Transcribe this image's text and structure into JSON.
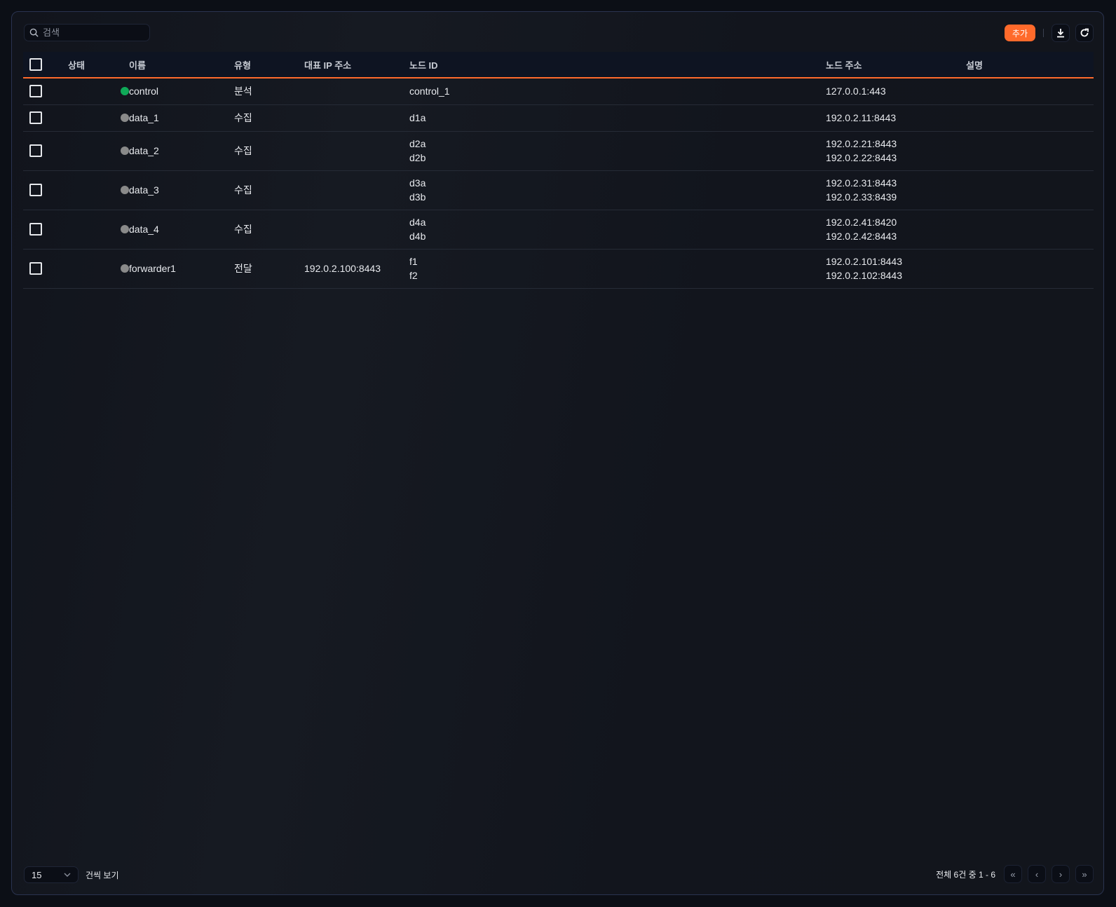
{
  "search": {
    "placeholder": "검색",
    "icon": "search-icon"
  },
  "toolbar": {
    "add_label": "추가",
    "download_icon": "download-icon",
    "refresh_icon": "refresh-icon",
    "accent": "#ff6a2b"
  },
  "table": {
    "headers": {
      "status": "상태",
      "name": "이름",
      "type": "유형",
      "rep_ip": "대표 IP 주소",
      "node_id": "노드 ID",
      "node_addr": "노드 주소",
      "desc": "설명"
    },
    "rows": [
      {
        "status": "online",
        "name": "control",
        "type": "분석",
        "rep_ip": "",
        "node_ids": [
          "control_1"
        ],
        "node_addrs": [
          "127.0.0.1:443"
        ],
        "desc": ""
      },
      {
        "status": "offline",
        "name": "data_1",
        "type": "수집",
        "rep_ip": "",
        "node_ids": [
          "d1a"
        ],
        "node_addrs": [
          "192.0.2.11:8443"
        ],
        "desc": ""
      },
      {
        "status": "offline",
        "name": "data_2",
        "type": "수집",
        "rep_ip": "",
        "node_ids": [
          "d2a",
          "d2b"
        ],
        "node_addrs": [
          "192.0.2.21:8443",
          "192.0.2.22:8443"
        ],
        "desc": ""
      },
      {
        "status": "offline",
        "name": "data_3",
        "type": "수집",
        "rep_ip": "",
        "node_ids": [
          "d3a",
          "d3b"
        ],
        "node_addrs": [
          "192.0.2.31:8443",
          "192.0.2.33:8439"
        ],
        "desc": ""
      },
      {
        "status": "offline",
        "name": "data_4",
        "type": "수집",
        "rep_ip": "",
        "node_ids": [
          "d4a",
          "d4b"
        ],
        "node_addrs": [
          "192.0.2.41:8420",
          "192.0.2.42:8443"
        ],
        "desc": ""
      },
      {
        "status": "offline",
        "name": "forwarder1",
        "type": "전달",
        "rep_ip": "192.0.2.100:8443",
        "node_ids": [
          "f1",
          "f2"
        ],
        "node_addrs": [
          "192.0.2.101:8443",
          "192.0.2.102:8443"
        ],
        "desc": ""
      }
    ],
    "status_colors": {
      "online": "#0fa958",
      "offline": "#8a8a8a"
    }
  },
  "footer": {
    "page_size": "15",
    "page_size_label": "건씩 보기",
    "summary": "전체 6건 중 1 - 6"
  }
}
